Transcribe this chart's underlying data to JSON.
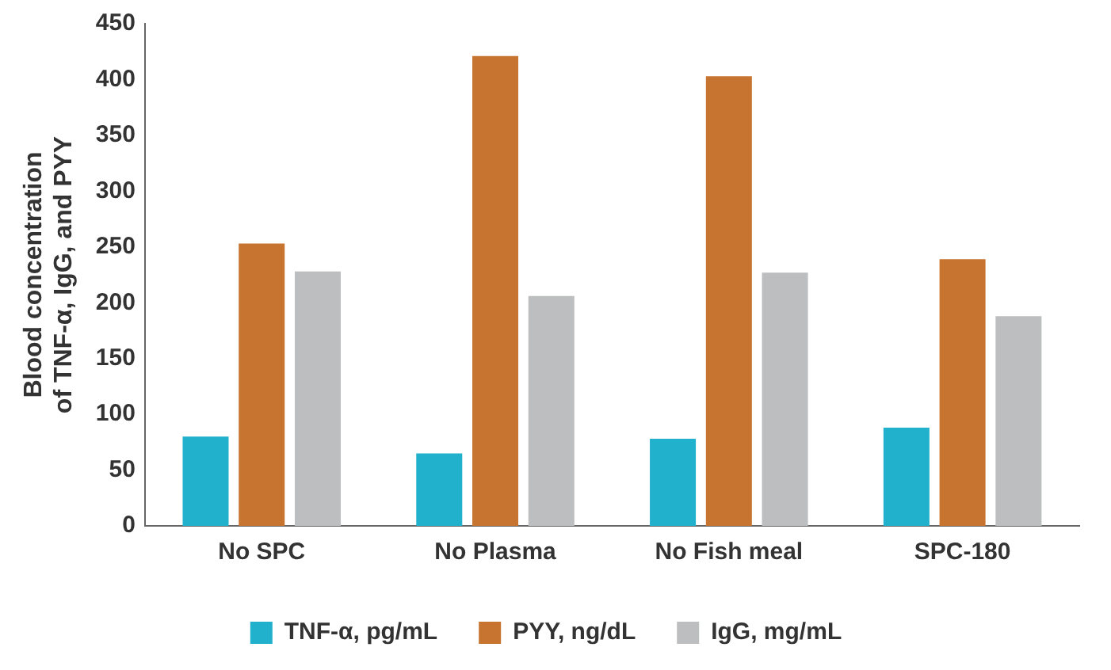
{
  "chart_data": {
    "type": "bar",
    "ylabel": "Blood concentration of TNF-α, IgG, and PYY",
    "categories": [
      "No SPC",
      "No Plasma",
      "No Fish meal",
      "SPC-180"
    ],
    "series": [
      {
        "name": "TNF-α, pg/mL",
        "color": "#22b1cc",
        "values": [
          80,
          65,
          78,
          88
        ]
      },
      {
        "name": "PYY, ng/dL",
        "color": "#c87431",
        "values": [
          253,
          421,
          403,
          239
        ]
      },
      {
        "name": "IgG, mg/mL",
        "color": "#bcbec0",
        "values": [
          228,
          206,
          227,
          188
        ]
      }
    ],
    "ylim": [
      0,
      450
    ],
    "yticks": [
      0,
      50,
      100,
      150,
      200,
      250,
      300,
      350,
      400,
      450
    ],
    "grid": false,
    "legend": "bottom"
  }
}
